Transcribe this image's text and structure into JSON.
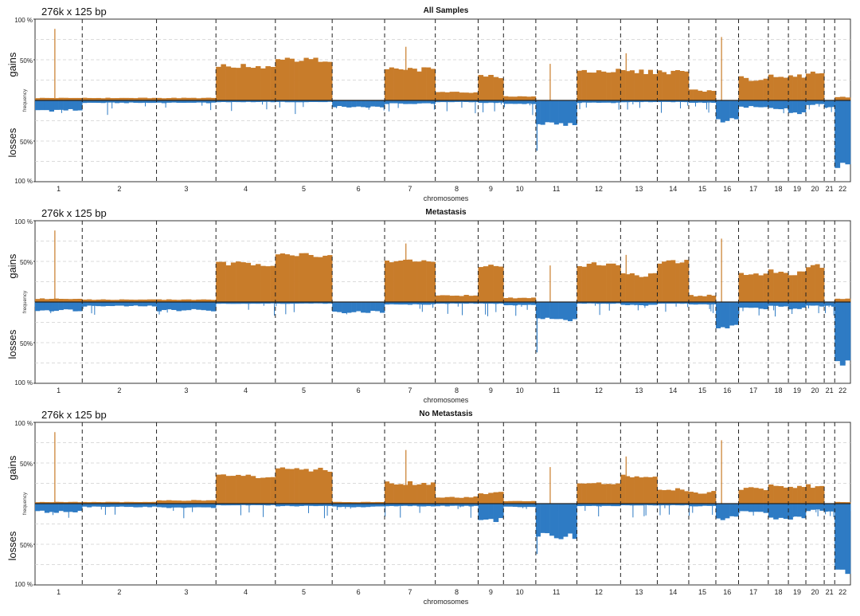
{
  "chart_data": [
    {
      "type": "bar",
      "title": "All Samples",
      "subtitle": "276k x 125 bp",
      "xlabel": "chromosomes",
      "ylabel_inner": "frequency",
      "ylabel_upper": "gains",
      "ylabel_lower": "losses",
      "ylim": [
        -100,
        100
      ],
      "y_ticks": [
        {
          "value": 100,
          "label": "100 %"
        },
        {
          "value": 50,
          "label": "50%"
        },
        {
          "value": -50,
          "label": "50%"
        },
        {
          "value": -100,
          "label": "100 %"
        }
      ],
      "colors": {
        "gain": "#C87C2A",
        "loss": "#2E7BC4"
      },
      "categories": [
        "1",
        "2",
        "3",
        "4",
        "5",
        "6",
        "7",
        "8",
        "9",
        "10",
        "11",
        "12",
        "13",
        "14",
        "15",
        "16",
        "17",
        "18",
        "19",
        "20",
        "21",
        "22"
      ],
      "series": [
        {
          "name": "gains",
          "values": [
            3,
            3,
            3,
            42,
            50,
            0,
            38,
            10,
            30,
            5,
            0,
            36,
            35,
            35,
            12,
            0,
            27,
            30,
            30,
            35,
            0,
            4
          ]
        },
        {
          "name": "losses",
          "values": [
            -12,
            -3,
            -3,
            -2,
            -2,
            -8,
            -4,
            -2,
            -3,
            -4,
            -30,
            -3,
            -2,
            -2,
            -3,
            -25,
            -8,
            -10,
            -15,
            -5,
            -8,
            -80
          ]
        }
      ]
    },
    {
      "type": "bar",
      "title": "Metastasis",
      "subtitle": "276k x 125 bp",
      "xlabel": "chromosomes",
      "ylabel_inner": "frequency",
      "ylabel_upper": "gains",
      "ylabel_lower": "losses",
      "ylim": [
        -100,
        100
      ],
      "y_ticks": [
        {
          "value": 100,
          "label": "100 %"
        },
        {
          "value": 50,
          "label": "50%"
        },
        {
          "value": -50,
          "label": "50%"
        },
        {
          "value": -100,
          "label": "100 %"
        }
      ],
      "colors": {
        "gain": "#C87C2A",
        "loss": "#2E7BC4"
      },
      "categories": [
        "1",
        "2",
        "3",
        "4",
        "5",
        "6",
        "7",
        "8",
        "9",
        "10",
        "11",
        "12",
        "13",
        "14",
        "15",
        "16",
        "17",
        "18",
        "19",
        "20",
        "21",
        "22"
      ],
      "series": [
        {
          "name": "gains",
          "values": [
            4,
            3,
            3,
            47,
            58,
            0,
            50,
            8,
            44,
            5,
            0,
            46,
            33,
            50,
            8,
            0,
            33,
            38,
            35,
            45,
            0,
            4
          ]
        },
        {
          "name": "losses",
          "values": [
            -10,
            -5,
            -10,
            -2,
            -2,
            -12,
            -3,
            -2,
            -2,
            -4,
            -22,
            -2,
            -4,
            -2,
            -3,
            -30,
            -8,
            -5,
            -8,
            -5,
            -5,
            -75
          ]
        }
      ]
    },
    {
      "type": "bar",
      "title": "No Metastasis",
      "subtitle": "276k x 125 bp",
      "xlabel": "chromosomes",
      "ylabel_inner": "frequency",
      "ylabel_upper": "gains",
      "ylabel_lower": "losses",
      "ylim": [
        -100,
        100
      ],
      "y_ticks": [
        {
          "value": 100,
          "label": "100 %"
        },
        {
          "value": 50,
          "label": "50%"
        },
        {
          "value": -50,
          "label": "50%"
        },
        {
          "value": -100,
          "label": "100 %"
        }
      ],
      "colors": {
        "gain": "#C87C2A",
        "loss": "#2E7BC4"
      },
      "categories": [
        "1",
        "2",
        "3",
        "4",
        "5",
        "6",
        "7",
        "8",
        "9",
        "10",
        "11",
        "12",
        "13",
        "14",
        "15",
        "16",
        "17",
        "18",
        "19",
        "20",
        "21",
        "22"
      ],
      "series": [
        {
          "name": "gains",
          "values": [
            2,
            2,
            4,
            33,
            42,
            2,
            25,
            8,
            13,
            3,
            0,
            24,
            33,
            17,
            14,
            0,
            18,
            22,
            22,
            22,
            0,
            2
          ]
        },
        {
          "name": "losses",
          "values": [
            -10,
            -4,
            -5,
            -2,
            -3,
            -4,
            -3,
            -3,
            -20,
            -4,
            -40,
            -3,
            -2,
            -2,
            -3,
            -18,
            -10,
            -18,
            -18,
            -8,
            -10,
            -85
          ]
        }
      ]
    }
  ]
}
